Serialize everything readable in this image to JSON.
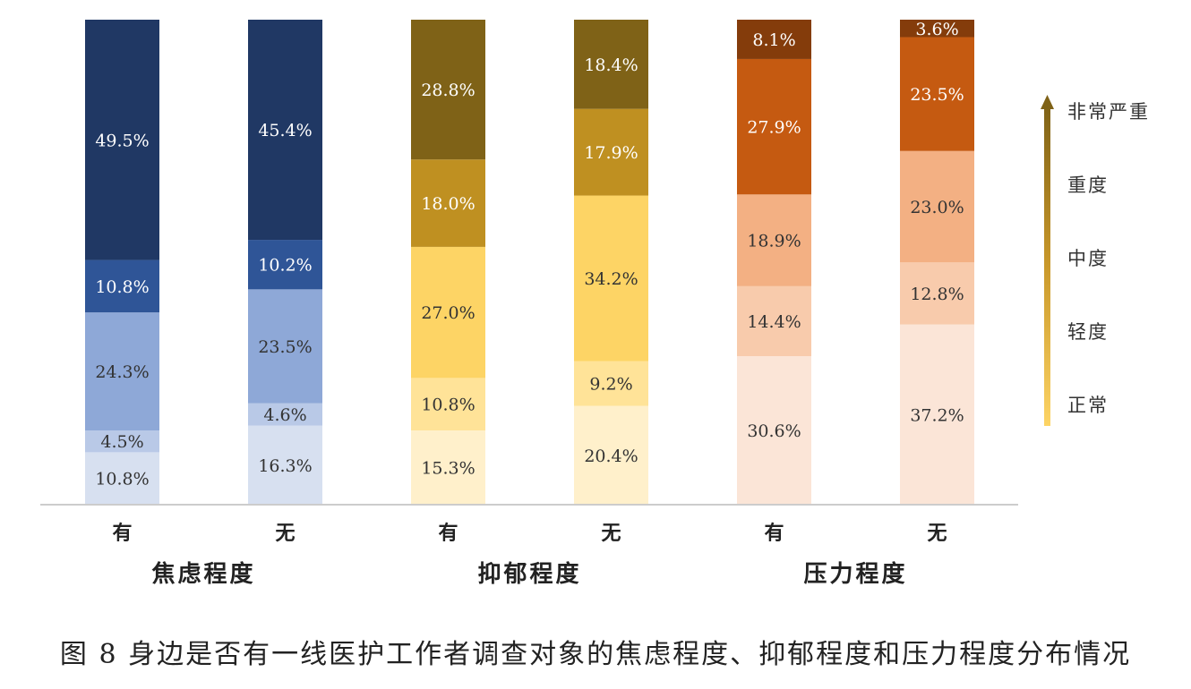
{
  "chart_data": {
    "type": "bar",
    "stacked": true,
    "percent_stacked": true,
    "groups": [
      {
        "name": "焦虑程度",
        "bars": [
          {
            "category": "有",
            "values": [
              10.8,
              4.5,
              24.3,
              10.8,
              49.5
            ]
          },
          {
            "category": "无",
            "values": [
              16.3,
              4.6,
              23.5,
              10.2,
              45.4
            ]
          }
        ],
        "colors": [
          "#d7e0f0",
          "#b9c9e7",
          "#8ea8d7",
          "#2f5597",
          "#203864"
        ],
        "label_colors": [
          "#333333",
          "#333333",
          "#333333",
          "#ffffff",
          "#ffffff"
        ]
      },
      {
        "name": "抑郁程度",
        "bars": [
          {
            "category": "有",
            "values": [
              15.3,
              10.8,
              27.0,
              18.0,
              28.8
            ]
          },
          {
            "category": "无",
            "values": [
              20.4,
              9.2,
              34.2,
              17.9,
              18.4
            ]
          }
        ],
        "colors": [
          "#fff0cb",
          "#ffe398",
          "#fdd465",
          "#bf9021",
          "#7f6217"
        ],
        "label_colors": [
          "#333333",
          "#333333",
          "#333333",
          "#ffffff",
          "#ffffff"
        ]
      },
      {
        "name": "压力程度",
        "bars": [
          {
            "category": "有",
            "values": [
              30.6,
              14.4,
              18.9,
              27.9,
              8.1
            ]
          },
          {
            "category": "无",
            "values": [
              37.2,
              12.8,
              23.0,
              23.5,
              3.6
            ]
          }
        ],
        "colors": [
          "#fbe5d7",
          "#f8cbac",
          "#f3b083",
          "#c55a11",
          "#843c0b"
        ],
        "label_colors": [
          "#333333",
          "#333333",
          "#333333",
          "#ffffff",
          "#ffffff"
        ]
      }
    ],
    "levels": [
      "正常",
      "轻度",
      "中度",
      "重度",
      "非常严重"
    ],
    "legend_position": "right",
    "ylim": [
      0,
      100
    ],
    "grid": false
  },
  "caption": "图 8  身边是否有一线医护工作者调查对象的焦虑程度、抑郁程度和压力程度分布情况"
}
